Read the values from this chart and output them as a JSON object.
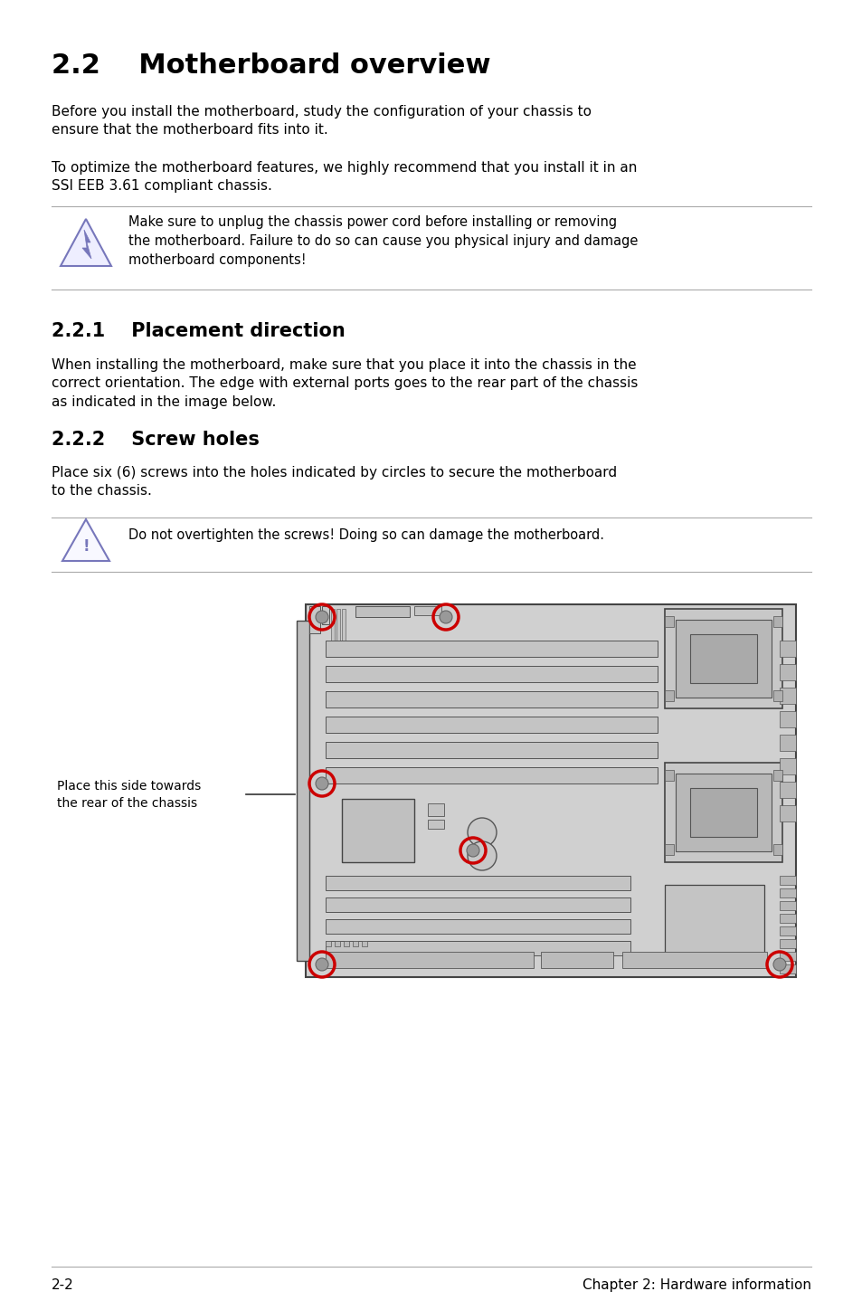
{
  "title": "2.2    Motherboard overview",
  "para1": "Before you install the motherboard, study the configuration of your chassis to\nensure that the motherboard fits into it.",
  "para2": "To optimize the motherboard features, we highly recommend that you install it in an\nSSI EEB 3.61 compliant chassis.",
  "warning1": "Make sure to unplug the chassis power cord before installing or removing\nthe motherboard. Failure to do so can cause you physical injury and damage\nmotherboard components!",
  "section221": "2.2.1    Placement direction",
  "para3": "When installing the motherboard, make sure that you place it into the chassis in the\ncorrect orientation. The edge with external ports goes to the rear part of the chassis\nas indicated in the image below.",
  "section222": "2.2.2    Screw holes",
  "para4": "Place six (6) screws into the holes indicated by circles to secure the motherboard\nto the chassis.",
  "warning2": "Do not overtighten the screws! Doing so can damage the motherboard.",
  "label_side": "Place this side towards\nthe rear of the chassis",
  "footer_left": "2-2",
  "footer_right": "Chapter 2: Hardware information",
  "bg_color": "#ffffff",
  "text_color": "#000000",
  "board_color": "#cccccc",
  "screw_color": "#cc0000",
  "warn_color": "#7777bb",
  "line_color": "#aaaaaa"
}
